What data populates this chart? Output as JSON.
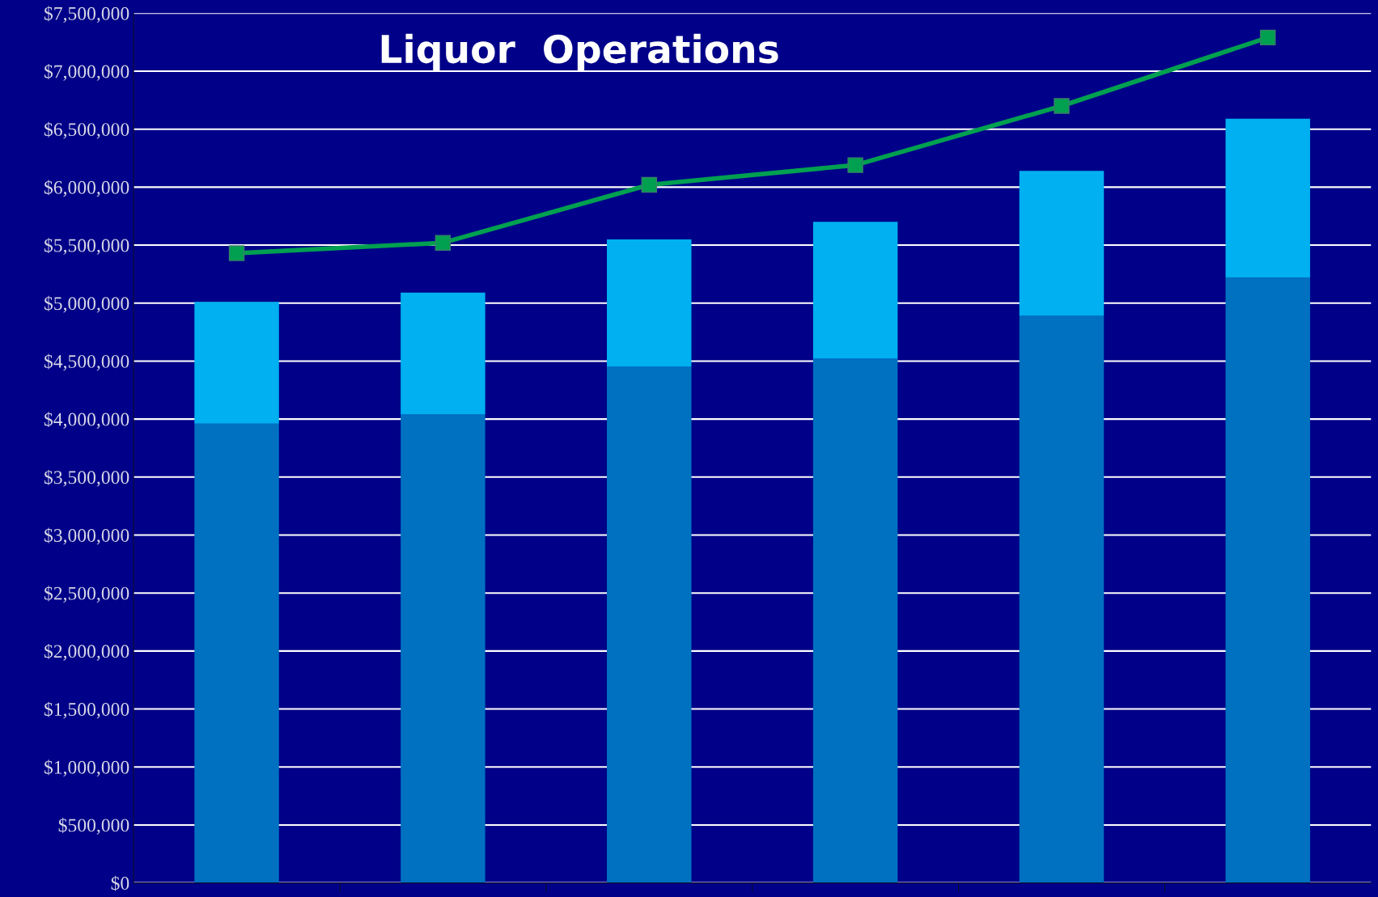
{
  "chart_data": {
    "type": "bar",
    "title": "Liquor  Operations",
    "stacked": true,
    "categories": [
      null,
      null,
      null,
      null,
      null,
      null
    ],
    "series": [
      {
        "color": "#0070c0",
        "values": [
          3960000,
          4040000,
          4450000,
          4520000,
          4890000,
          5220000
        ]
      },
      {
        "color": "#00b0f0",
        "values": [
          1050000,
          1050000,
          1100000,
          1180000,
          1250000,
          1370000
        ]
      },
      {
        "type": "line",
        "color": "#00a050",
        "values": [
          5430000,
          5520000,
          6020000,
          6190000,
          6700000,
          7290000
        ],
        "marker": "square",
        "line_style": "solid"
      }
    ],
    "ylim": [
      0,
      7500000
    ],
    "yticks": [
      {
        "value": 0,
        "label": "$0"
      },
      {
        "value": 500000,
        "label": "$500,000"
      },
      {
        "value": 1000000,
        "label": "$1,000,000"
      },
      {
        "value": 1500000,
        "label": "$1,500,000"
      },
      {
        "value": 2000000,
        "label": "$2,000,000"
      },
      {
        "value": 2500000,
        "label": "$2,500,000"
      },
      {
        "value": 3000000,
        "label": "$3,000,000"
      },
      {
        "value": 3500000,
        "label": "$3,500,000"
      },
      {
        "value": 4000000,
        "label": "$4,000,000"
      },
      {
        "value": 4500000,
        "label": "$4,500,000"
      },
      {
        "value": 5000000,
        "label": "$5,000,000"
      },
      {
        "value": 5500000,
        "label": "$5,500,000"
      },
      {
        "value": 6000000,
        "label": "$6,000,000"
      },
      {
        "value": 6500000,
        "label": "$6,500,000"
      },
      {
        "value": 7000000,
        "label": "$7,000,000"
      },
      {
        "value": 7500000,
        "label": "$7,500,000"
      }
    ],
    "grid": "y"
  }
}
